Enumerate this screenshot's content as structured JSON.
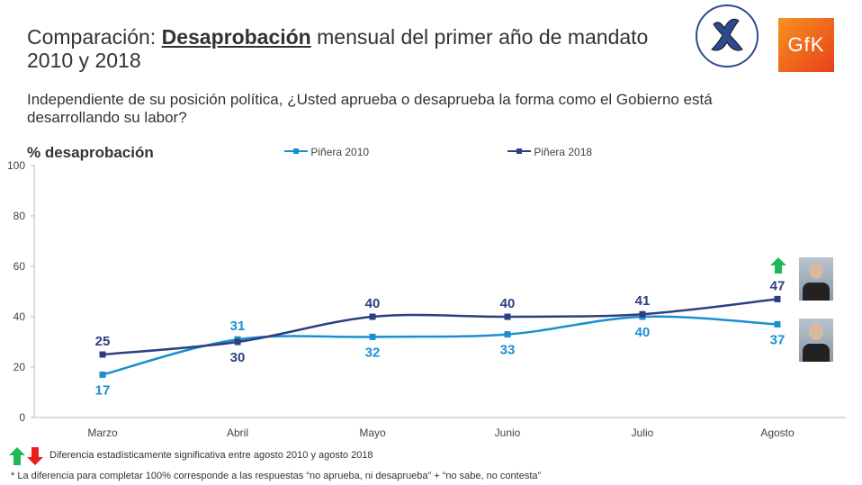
{
  "header": {
    "title_pre": "Comparación: ",
    "title_bold": "Desaprobación",
    "title_post": " mensual del primer año de mandato 2010 y 2018",
    "question": "Independiente de su posición política, ¿Usted aprueba o desaprueba la forma como el Gobierno está desarrollando su labor?",
    "logo_gfk": "GfK"
  },
  "notes": {
    "significance": "Diferencia estadísticamente significativa entre agosto 2010 y agosto 2018",
    "footnote": "* La diferencia para completar 100% corresponde a las respuestas “no aprueba, ni desaprueba” + “no sabe, no contesta”"
  },
  "chart_data": {
    "type": "line",
    "ylabel": "% desaprobación",
    "ylim": [
      0,
      100
    ],
    "yticks": [
      0,
      20,
      40,
      60,
      80,
      100
    ],
    "categories": [
      "Marzo",
      "Abril",
      "Mayo",
      "Junio",
      "Julio",
      "Agosto"
    ],
    "series": [
      {
        "name": "Piñera 2010",
        "color": "#1a8fd0",
        "values": [
          17,
          31,
          32,
          33,
          40,
          37
        ]
      },
      {
        "name": "Piñera 2018",
        "color": "#2e3f7f",
        "values": [
          25,
          30,
          40,
          40,
          41,
          47
        ]
      }
    ],
    "legend": "top",
    "annotation": "Agosto 2018 significantly higher (green up arrow)"
  }
}
